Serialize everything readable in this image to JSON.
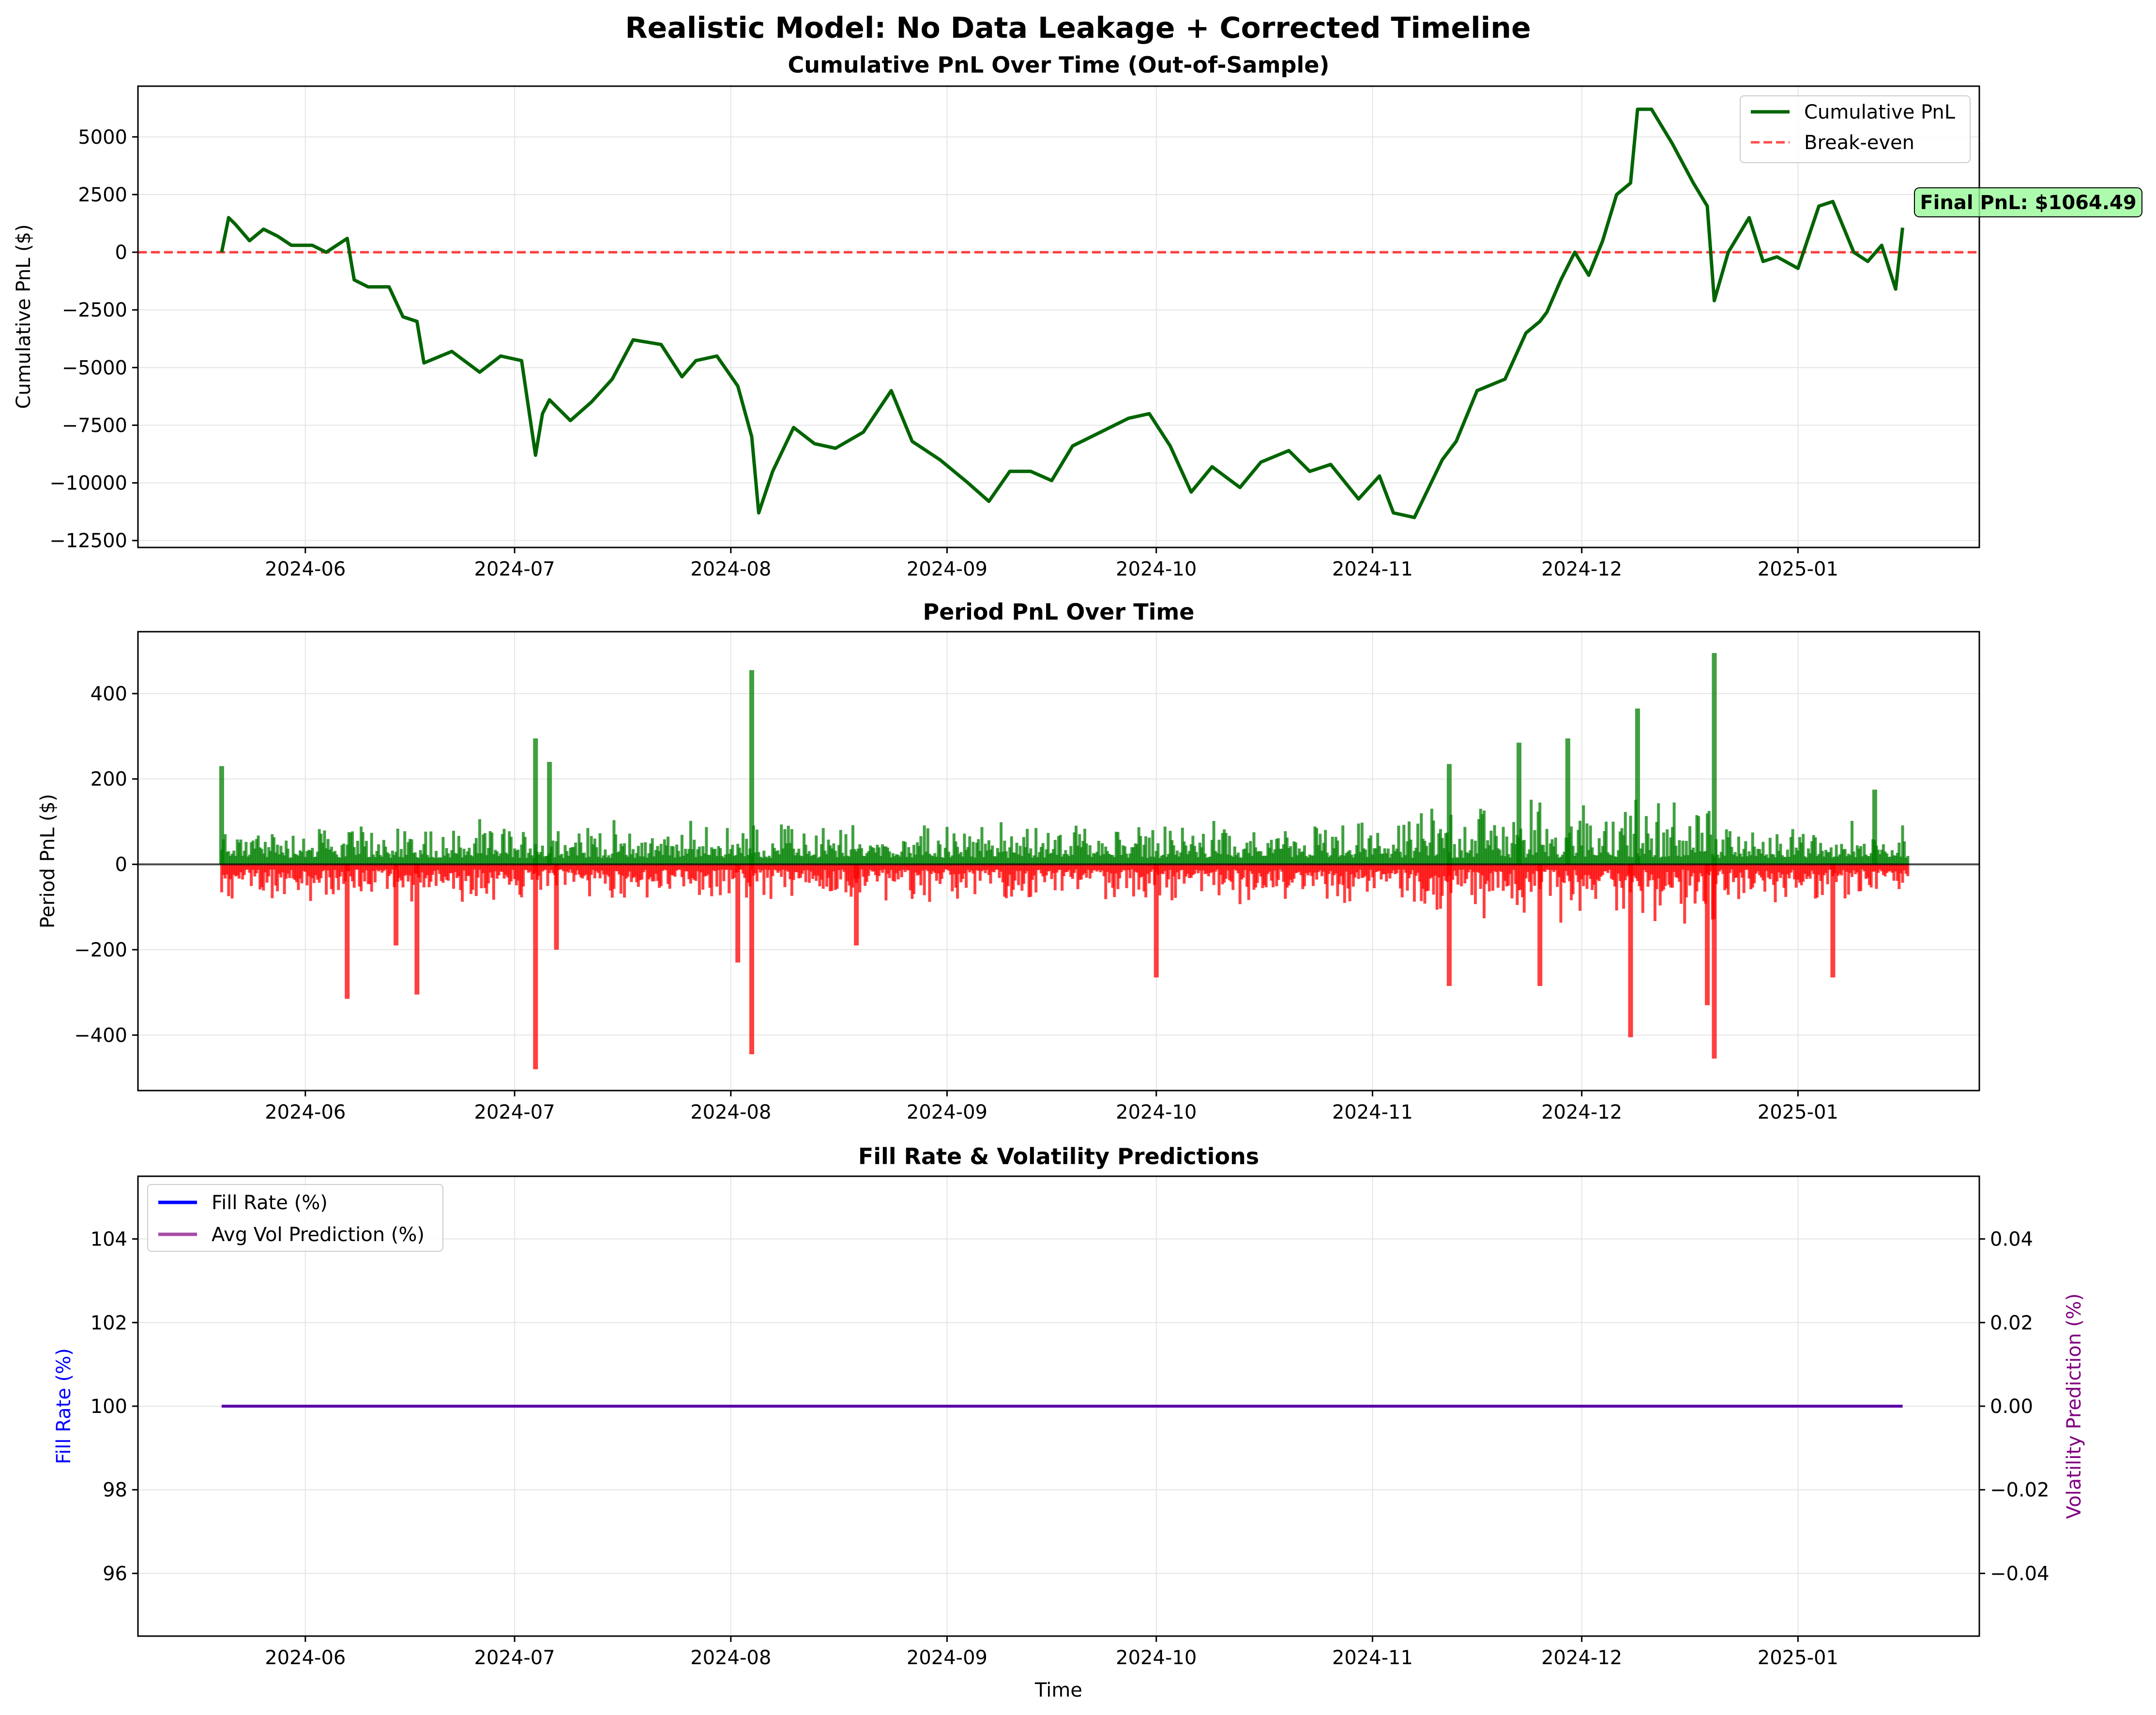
{
  "suptitle": "Realistic Model: No Data Leakage + Corrected Timeline",
  "colors": {
    "cum_line": "#006400",
    "breakeven": "#ff0000",
    "bar_pos": "#008000",
    "bar_neg": "#ff0000",
    "fill_rate": "#0000ff",
    "vol_pred": "#800080",
    "grid": "#e5e5e5",
    "annot_bg": "#98fb98"
  },
  "chart_data": [
    {
      "type": "line",
      "title": "Cumulative PnL Over Time (Out-of-Sample)",
      "xlabel": "",
      "ylabel": "Cumulative PnL ($)",
      "x_ticks": [
        "2024-06",
        "2024-07",
        "2024-08",
        "2024-09",
        "2024-10",
        "2024-11",
        "2024-12",
        "2025-01"
      ],
      "y_ticks": [
        5000,
        2500,
        0,
        -2500,
        -5000,
        -7500,
        -10000,
        -12500
      ],
      "xlim": [
        "2024-05-08",
        "2025-01-27"
      ],
      "ylim": [
        -12800,
        7200
      ],
      "grid": true,
      "legend_position": "top-right",
      "legend": [
        "Cumulative PnL",
        "Break-even"
      ],
      "series": [
        {
          "name": "Cumulative PnL",
          "x": [
            "2024-05-20",
            "2024-05-21",
            "2024-05-22",
            "2024-05-24",
            "2024-05-26",
            "2024-05-28",
            "2024-05-30",
            "2024-06-02",
            "2024-06-04",
            "2024-06-07",
            "2024-06-08",
            "2024-06-10",
            "2024-06-13",
            "2024-06-15",
            "2024-06-17",
            "2024-06-18",
            "2024-06-22",
            "2024-06-26",
            "2024-06-29",
            "2024-07-02",
            "2024-07-04",
            "2024-07-05",
            "2024-07-06",
            "2024-07-09",
            "2024-07-12",
            "2024-07-15",
            "2024-07-18",
            "2024-07-22",
            "2024-07-25",
            "2024-07-27",
            "2024-07-30",
            "2024-08-02",
            "2024-08-04",
            "2024-08-05",
            "2024-08-07",
            "2024-08-10",
            "2024-08-13",
            "2024-08-16",
            "2024-08-20",
            "2024-08-24",
            "2024-08-27",
            "2024-08-31",
            "2024-09-04",
            "2024-09-07",
            "2024-09-10",
            "2024-09-13",
            "2024-09-16",
            "2024-09-19",
            "2024-09-23",
            "2024-09-27",
            "2024-09-30",
            "2024-10-03",
            "2024-10-06",
            "2024-10-09",
            "2024-10-13",
            "2024-10-16",
            "2024-10-20",
            "2024-10-23",
            "2024-10-26",
            "2024-10-30",
            "2024-11-02",
            "2024-11-04",
            "2024-11-07",
            "2024-11-11",
            "2024-11-13",
            "2024-11-16",
            "2024-11-20",
            "2024-11-23",
            "2024-11-25",
            "2024-11-26",
            "2024-11-28",
            "2024-11-30",
            "2024-12-02",
            "2024-12-04",
            "2024-12-06",
            "2024-12-08",
            "2024-12-09",
            "2024-12-11",
            "2024-12-14",
            "2024-12-17",
            "2024-12-19",
            "2024-12-20",
            "2024-12-22",
            "2024-12-25",
            "2024-12-27",
            "2024-12-29",
            "2025-01-01",
            "2025-01-04",
            "2025-01-06",
            "2025-01-09",
            "2025-01-11",
            "2025-01-13",
            "2025-01-15",
            "2025-01-16"
          ],
          "y": [
            0,
            1500,
            1200,
            500,
            1000,
            700,
            300,
            300,
            0,
            600,
            -1200,
            -1500,
            -1500,
            -2800,
            -3000,
            -4800,
            -4300,
            -5200,
            -4500,
            -4700,
            -8800,
            -7000,
            -6400,
            -7300,
            -6500,
            -5500,
            -3800,
            -4000,
            -5400,
            -4700,
            -4500,
            -5800,
            -8000,
            -11300,
            -9500,
            -7600,
            -8300,
            -8500,
            -7800,
            -6000,
            -8200,
            -9000,
            -10000,
            -10800,
            -9500,
            -9500,
            -9900,
            -8400,
            -7800,
            -7200,
            -7000,
            -8400,
            -10400,
            -9300,
            -10200,
            -9100,
            -8600,
            -9500,
            -9200,
            -10700,
            -9700,
            -11300,
            -11500,
            -9000,
            -8200,
            -6000,
            -5500,
            -3500,
            -3000,
            -2600,
            -1200,
            0,
            -1000,
            500,
            2500,
            3000,
            6200,
            6200,
            4700,
            3000,
            2000,
            -2100,
            0,
            1500,
            -400,
            -200,
            -700,
            2000,
            2200,
            0,
            -400,
            300,
            -1600,
            1064.49
          ]
        },
        {
          "name": "Break-even",
          "y_const": 0
        }
      ],
      "annotation": "Final PnL: $1064.49"
    },
    {
      "type": "bar",
      "title": "Period PnL Over Time",
      "xlabel": "",
      "ylabel": "Period PnL ($)",
      "x_ticks": [
        "2024-06",
        "2024-07",
        "2024-08",
        "2024-09",
        "2024-10",
        "2024-11",
        "2024-12",
        "2025-01"
      ],
      "y_ticks": [
        400,
        200,
        0,
        -200,
        -400
      ],
      "xlim": [
        "2024-05-08",
        "2025-01-27"
      ],
      "ylim": [
        -530,
        545
      ],
      "grid": true,
      "date_range": [
        "2024-05-20",
        "2025-01-16"
      ],
      "spikes": [
        {
          "x": "2024-05-20",
          "y": 230
        },
        {
          "x": "2024-06-07",
          "y": -315
        },
        {
          "x": "2024-06-14",
          "y": -190
        },
        {
          "x": "2024-06-17",
          "y": -305
        },
        {
          "x": "2024-07-04",
          "y": 295
        },
        {
          "x": "2024-07-04",
          "y": -480
        },
        {
          "x": "2024-07-06",
          "y": 240
        },
        {
          "x": "2024-07-07",
          "y": -200
        },
        {
          "x": "2024-08-04",
          "y": 455
        },
        {
          "x": "2024-08-04",
          "y": -445
        },
        {
          "x": "2024-08-02",
          "y": -230
        },
        {
          "x": "2024-08-19",
          "y": -190
        },
        {
          "x": "2024-10-01",
          "y": -265
        },
        {
          "x": "2024-11-12",
          "y": 235
        },
        {
          "x": "2024-11-12",
          "y": -285
        },
        {
          "x": "2024-11-22",
          "y": 285
        },
        {
          "x": "2024-11-25",
          "y": -285
        },
        {
          "x": "2024-11-29",
          "y": 295
        },
        {
          "x": "2024-12-09",
          "y": 365
        },
        {
          "x": "2024-12-08",
          "y": -405
        },
        {
          "x": "2024-12-20",
          "y": 495
        },
        {
          "x": "2024-12-20",
          "y": -455
        },
        {
          "x": "2024-12-19",
          "y": -330
        },
        {
          "x": "2025-01-06",
          "y": -265
        },
        {
          "x": "2025-01-12",
          "y": 175
        }
      ]
    },
    {
      "type": "line",
      "title": "Fill Rate & Volatility Predictions",
      "xlabel": "Time",
      "ylabel": "Fill Rate (%)",
      "ylabel_right": "Volatility Prediction (%)",
      "x_ticks": [
        "2024-06",
        "2024-07",
        "2024-08",
        "2024-09",
        "2024-10",
        "2024-11",
        "2024-12",
        "2025-01"
      ],
      "y_ticks": [
        104,
        102,
        100,
        98,
        96
      ],
      "y_ticks_right": [
        "0.04",
        "0.02",
        "0.00",
        "−0.02",
        "−0.04"
      ],
      "xlim": [
        "2024-05-08",
        "2025-01-27"
      ],
      "ylim": [
        94.5,
        105.5
      ],
      "ylim_right": [
        -0.055,
        0.055
      ],
      "grid": true,
      "legend_position": "top-left",
      "legend": [
        "Fill Rate (%)",
        "Avg Vol Prediction (%)"
      ],
      "series": [
        {
          "name": "Fill Rate (%)",
          "x": [
            "2024-05-20",
            "2025-01-16"
          ],
          "y": [
            100,
            100
          ]
        },
        {
          "name": "Avg Vol Prediction (%)",
          "x": [
            "2024-05-20",
            "2025-01-16"
          ],
          "y": [
            0,
            0
          ]
        }
      ]
    }
  ]
}
